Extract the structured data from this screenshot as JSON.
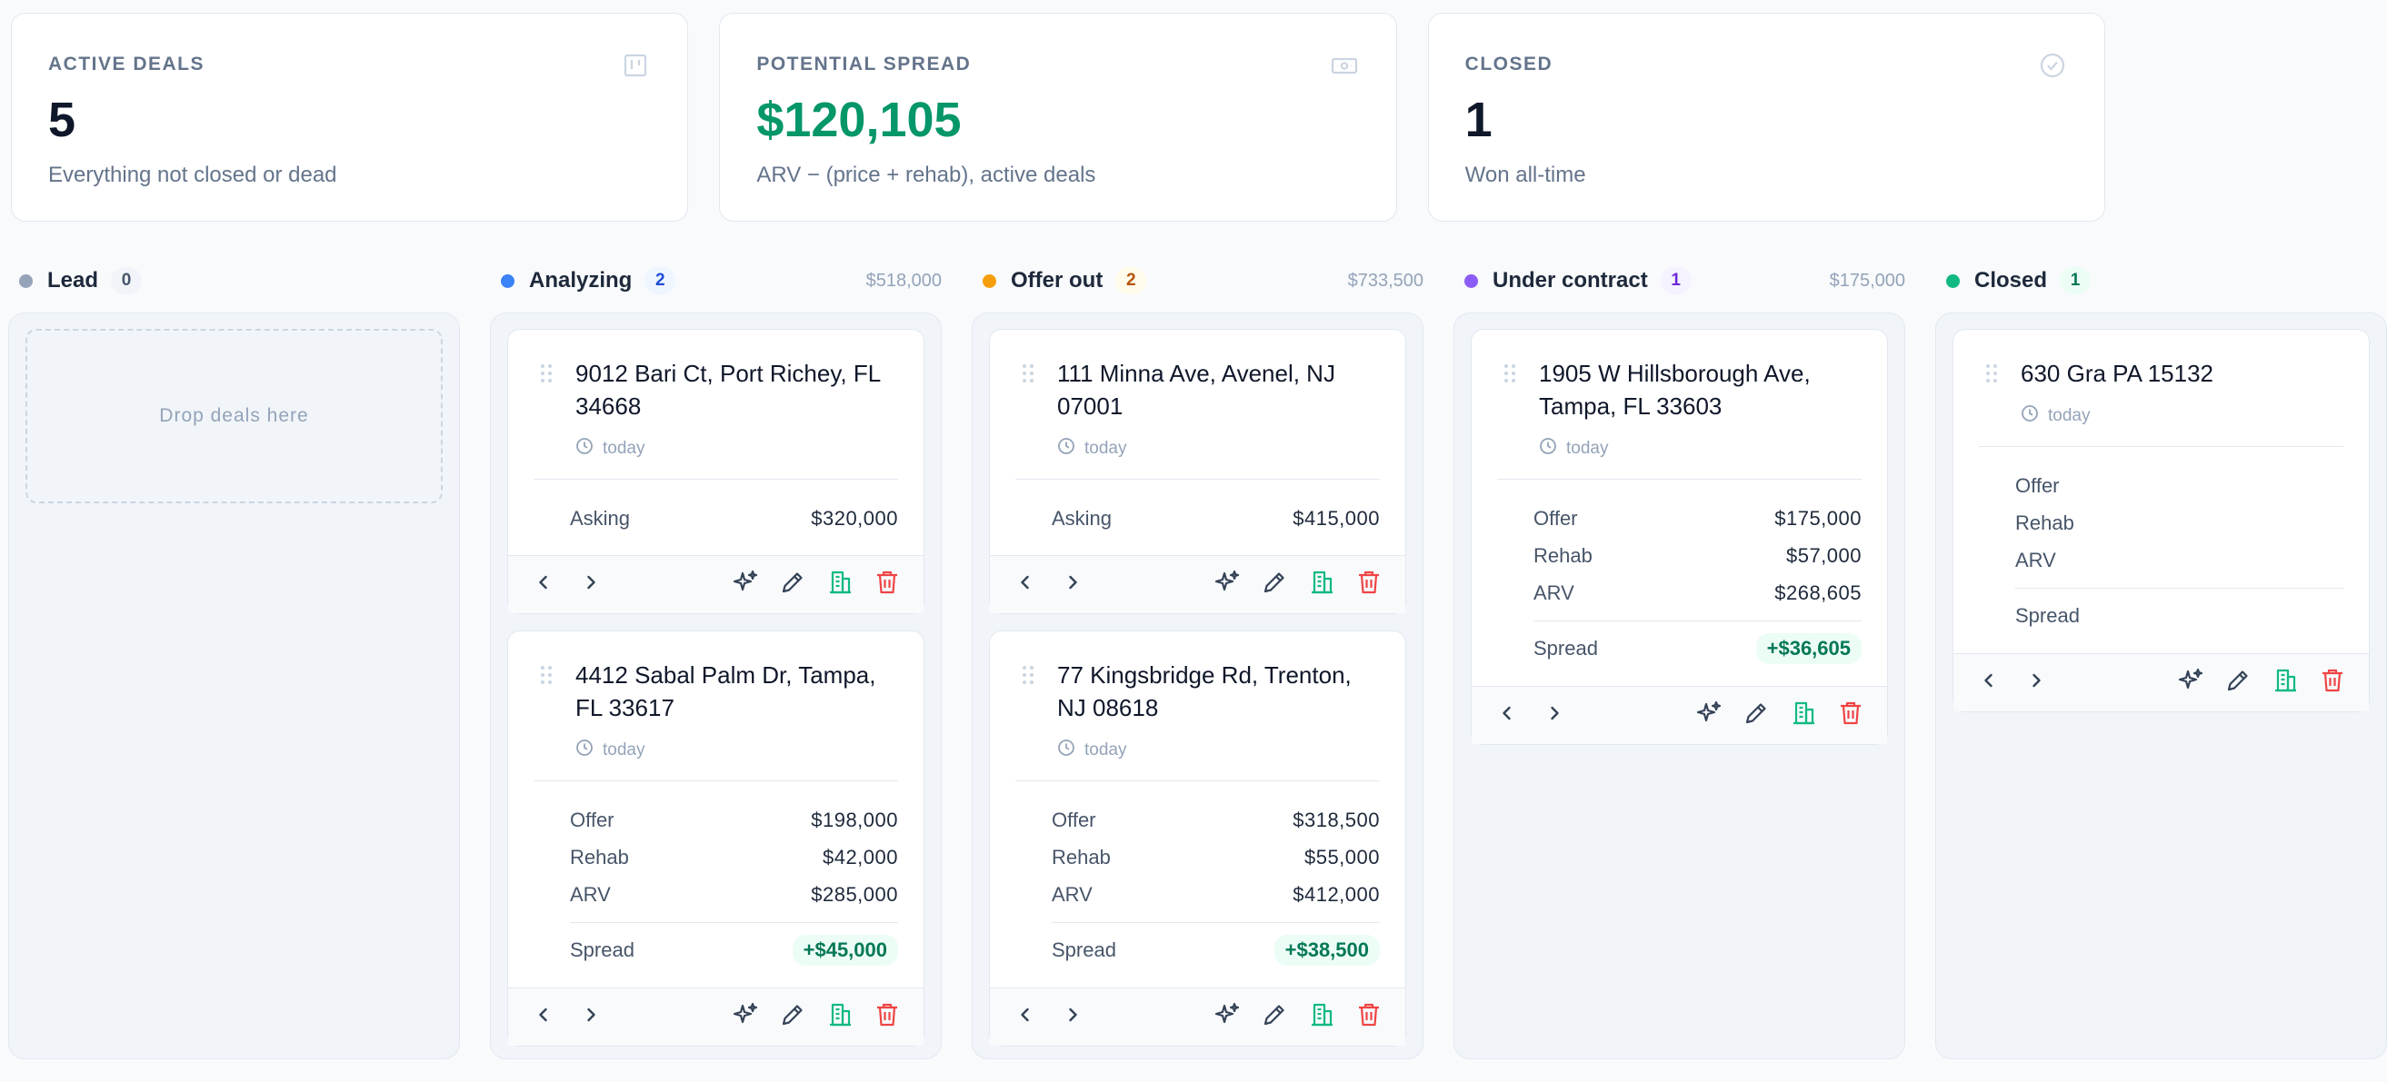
{
  "stats": [
    {
      "label": "ACTIVE DEALS",
      "value": "5",
      "sub": "Everything not closed or dead",
      "icon": "kanban-icon"
    },
    {
      "label": "POTENTIAL SPREAD",
      "value": "$120,105",
      "sub": "ARV − (price + rehab), active deals",
      "icon": "banknote-icon"
    },
    {
      "label": "CLOSED",
      "value": "1",
      "sub": "Won all-time",
      "icon": "check-circle-icon"
    }
  ],
  "columns": [
    {
      "title": "Lead",
      "count": "0",
      "total": "",
      "color": "#94a3b8",
      "badge_bg": "#f1f5f9",
      "badge_fg": "#475569",
      "drop_text": "Drop deals here",
      "cards": []
    },
    {
      "title": "Analyzing",
      "count": "2",
      "total": "$518,000",
      "color": "#3b82f6",
      "badge_bg": "#eff6ff",
      "badge_fg": "#1d4ed8",
      "cards": [
        {
          "address": "9012 Bari Ct, Port Richey, FL 34668",
          "age": "today",
          "rows": [
            {
              "label": "Asking",
              "value": "$320,000"
            }
          ],
          "spread": ""
        },
        {
          "address": "4412 Sabal Palm Dr, Tampa, FL 33617",
          "age": "today",
          "rows": [
            {
              "label": "Offer",
              "value": "$198,000"
            },
            {
              "label": "Rehab",
              "value": "$42,000"
            },
            {
              "label": "ARV",
              "value": "$285,000"
            }
          ],
          "spread_label": "Spread",
          "spread": "+$45,000"
        }
      ]
    },
    {
      "title": "Offer out",
      "count": "2",
      "total": "$733,500",
      "color": "#f59e0b",
      "badge_bg": "#fffbeb",
      "badge_fg": "#b45309",
      "cards": [
        {
          "address": "111 Minna Ave, Avenel, NJ 07001",
          "age": "today",
          "rows": [
            {
              "label": "Asking",
              "value": "$415,000"
            }
          ],
          "spread": ""
        },
        {
          "address": "77 Kingsbridge Rd, Trenton, NJ 08618",
          "age": "today",
          "rows": [
            {
              "label": "Offer",
              "value": "$318,500"
            },
            {
              "label": "Rehab",
              "value": "$55,000"
            },
            {
              "label": "ARV",
              "value": "$412,000"
            }
          ],
          "spread_label": "Spread",
          "spread": "+$38,500"
        }
      ]
    },
    {
      "title": "Under contract",
      "count": "1",
      "total": "$175,000",
      "color": "#8b5cf6",
      "badge_bg": "#f5f3ff",
      "badge_fg": "#6d28d9",
      "cards": [
        {
          "address": "1905 W Hillsborough Ave, Tampa, FL 33603",
          "age": "today",
          "rows": [
            {
              "label": "Offer",
              "value": "$175,000"
            },
            {
              "label": "Rehab",
              "value": "$57,000"
            },
            {
              "label": "ARV",
              "value": "$268,605"
            }
          ],
          "spread_label": "Spread",
          "spread": "+$36,605"
        }
      ]
    },
    {
      "title": "Closed",
      "count": "1",
      "total": "",
      "color": "#10b981",
      "badge_bg": "#ecfdf5",
      "badge_fg": "#047857",
      "cards": [
        {
          "address": "630 Gra PA 15132",
          "age": "today",
          "rows": [
            {
              "label": "Offer",
              "value": ""
            },
            {
              "label": "Rehab",
              "value": ""
            },
            {
              "label": "ARV",
              "value": ""
            }
          ],
          "spread_label": "Spread",
          "spread": ""
        }
      ]
    }
  ]
}
